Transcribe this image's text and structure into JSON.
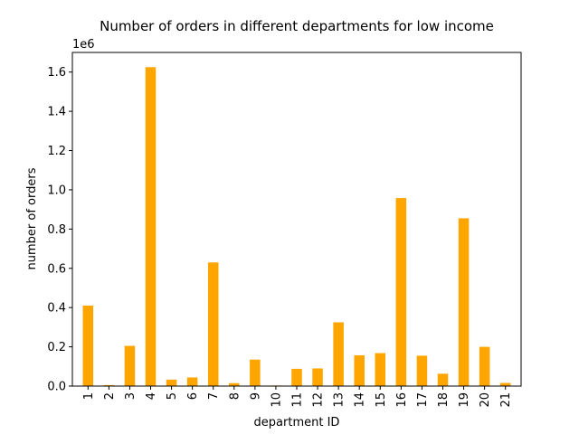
{
  "chart_data": {
    "type": "bar",
    "title": "Number of orders in different departments for low income",
    "xlabel": "department ID",
    "ylabel": "number of orders",
    "y_offset_label": "1e6",
    "categories": [
      "1",
      "2",
      "3",
      "4",
      "5",
      "6",
      "7",
      "8",
      "9",
      "10",
      "11",
      "12",
      "13",
      "14",
      "15",
      "16",
      "17",
      "18",
      "19",
      "20",
      "21"
    ],
    "values": [
      410000,
      5000,
      205000,
      1625000,
      33000,
      44000,
      630000,
      15000,
      135000,
      3000,
      88000,
      90000,
      325000,
      157000,
      168000,
      958000,
      155000,
      63000,
      855000,
      200000,
      16000
    ],
    "ylim": [
      0,
      1700000
    ],
    "yticks": [
      0,
      200000,
      400000,
      600000,
      800000,
      1000000,
      1200000,
      1400000,
      1600000
    ],
    "ytick_labels": [
      "0.0",
      "0.2",
      "0.4",
      "0.6",
      "0.8",
      "1.0",
      "1.2",
      "1.4",
      "1.6"
    ],
    "bar_color": "#ffa500",
    "grid": false,
    "legend": "none"
  }
}
